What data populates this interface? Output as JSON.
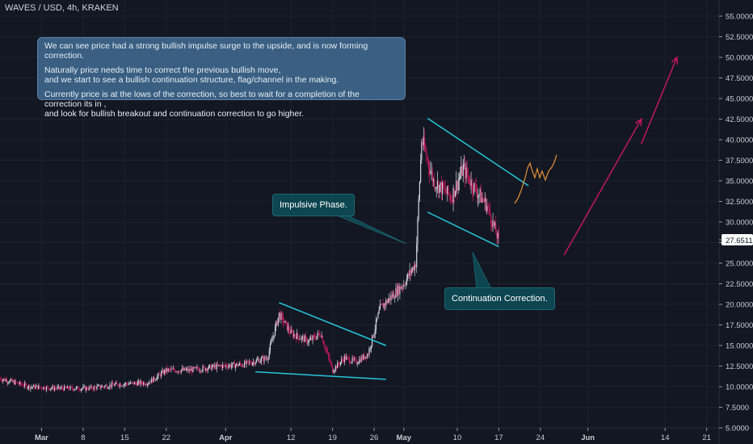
{
  "symbol": "WAVES / USD, 4h, KRAKEN",
  "note": {
    "line1": "We can see price had a strong bullish impulse surge to the upside, and is now forming correction.",
    "line2a": "Naturally price needs time to correct the previous bullish move,",
    "line2b": "and we start to see a bullish continuation structure, flag/channel in the making.",
    "line3a": "Currently price is at the lows of the correction, so best to wait for a completion of the correction its in ,",
    "line3b": "and look for bullish breakout and continuation correction to go higher."
  },
  "callouts": {
    "impulsive": "Impulsive Phase.",
    "continuation": "Continuation Correction."
  },
  "colors": {
    "background": "#131722",
    "up": "#d1d4dc",
    "down": "#c2185b",
    "trendline": "#26c6da",
    "arrow": "#c2185b",
    "projection": "#e69138",
    "price_label_bg": "#ffffff"
  },
  "chart_data": {
    "type": "candlestick",
    "symbol": "WAVES / USD",
    "interval": "4h",
    "exchange": "KRAKEN",
    "last_price": "27.6511",
    "y_ticks": [
      "55.0000",
      "52.5000",
      "50.0000",
      "47.5000",
      "45.0000",
      "42.5000",
      "40.0000",
      "37.5000",
      "35.0000",
      "32.5000",
      "30.0000",
      "27.5000",
      "25.0000",
      "22.5000",
      "20.0000",
      "17.5000",
      "15.0000",
      "12.5000",
      "10.0000",
      "7.5000",
      "5.0000"
    ],
    "ylim": [
      5.0,
      55.0
    ],
    "x_ticks": [
      {
        "label": "Mar",
        "bold": true
      },
      {
        "label": "8",
        "bold": false
      },
      {
        "label": "15",
        "bold": false
      },
      {
        "label": "22",
        "bold": false
      },
      {
        "label": "Apr",
        "bold": true
      },
      {
        "label": "12",
        "bold": false
      },
      {
        "label": "19",
        "bold": false
      },
      {
        "label": "26",
        "bold": false
      },
      {
        "label": "May",
        "bold": true
      },
      {
        "label": "10",
        "bold": false
      },
      {
        "label": "17",
        "bold": false
      },
      {
        "label": "24",
        "bold": false
      },
      {
        "label": "Jun",
        "bold": true
      },
      {
        "label": "14",
        "bold": false
      },
      {
        "label": "21",
        "bold": false
      }
    ],
    "price_path": [
      [
        "2021-02-22",
        11.0
      ],
      [
        "2021-02-27",
        10.0
      ],
      [
        "2021-03-04",
        9.8
      ],
      [
        "2021-03-09",
        9.8
      ],
      [
        "2021-03-14",
        10.3
      ],
      [
        "2021-03-19",
        10.5
      ],
      [
        "2021-03-22",
        12.0
      ],
      [
        "2021-03-26",
        12.0
      ],
      [
        "2021-03-31",
        12.5
      ],
      [
        "2021-04-04",
        12.7
      ],
      [
        "2021-04-08",
        13.5
      ],
      [
        "2021-04-10",
        18.8
      ],
      [
        "2021-04-12",
        16.5
      ],
      [
        "2021-04-15",
        15.5
      ],
      [
        "2021-04-17",
        16.5
      ],
      [
        "2021-04-19",
        12.0
      ],
      [
        "2021-04-21",
        13.5
      ],
      [
        "2021-04-23",
        13.0
      ],
      [
        "2021-04-25",
        14.0
      ],
      [
        "2021-04-27",
        19.5
      ],
      [
        "2021-04-29",
        21.0
      ],
      [
        "2021-05-01",
        22.5
      ],
      [
        "2021-05-03",
        25.0
      ],
      [
        "2021-05-04",
        40.0
      ],
      [
        "2021-05-06",
        35.0
      ],
      [
        "2021-05-09",
        33.0
      ],
      [
        "2021-05-11",
        36.5
      ],
      [
        "2021-05-13",
        34.0
      ],
      [
        "2021-05-15",
        32.0
      ],
      [
        "2021-05-17",
        27.6511
      ]
    ],
    "trendlines": [
      {
        "name": "flag-1-top",
        "from": [
          "2021-04-10",
          20.2
        ],
        "to": [
          "2021-04-28",
          15.0
        ]
      },
      {
        "name": "flag-1-bottom",
        "from": [
          "2021-04-06",
          11.8
        ],
        "to": [
          "2021-04-28",
          10.9
        ]
      },
      {
        "name": "channel-top",
        "from": [
          "2021-05-05",
          42.6
        ],
        "to": [
          "2021-05-22",
          34.4
        ]
      },
      {
        "name": "channel-bottom",
        "from": [
          "2021-05-05",
          31.2
        ],
        "to": [
          "2021-05-17",
          27.0
        ]
      }
    ],
    "arrows": [
      {
        "from": [
          "2021-05-28",
          26.0
        ],
        "to": [
          "2021-06-10",
          42.5
        ]
      },
      {
        "from": [
          "2021-06-10",
          39.5
        ],
        "to": [
          "2021-06-16",
          50.0
        ]
      }
    ]
  }
}
